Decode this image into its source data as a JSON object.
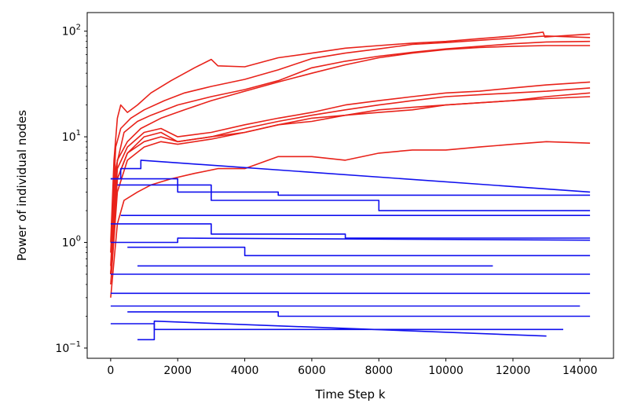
{
  "chart_data": {
    "type": "line",
    "title": "",
    "xlabel": "Time Step k",
    "ylabel": "Power of individual nodes",
    "xlim": [
      -700,
      15000
    ],
    "ylim": [
      0.08,
      150
    ],
    "yscale": "log",
    "grid": false,
    "xticks": [
      0,
      2000,
      4000,
      6000,
      8000,
      10000,
      12000,
      14000
    ],
    "xtick_labels": [
      "0",
      "2000",
      "4000",
      "6000",
      "8000",
      "10000",
      "12000",
      "14000"
    ],
    "yticks": [
      0.1,
      1,
      10,
      100
    ],
    "ytick_labels": [
      {
        "base": "10",
        "exp": "−1"
      },
      {
        "base": "10",
        "exp": "0"
      },
      {
        "base": "10",
        "exp": "1"
      },
      {
        "base": "10",
        "exp": "2"
      }
    ],
    "colors": {
      "red_group": "#e8221a",
      "blue_group": "#1010ee"
    },
    "series": [
      {
        "group": "red",
        "x": [
          0,
          100,
          200,
          300,
          500,
          800,
          1200,
          1800,
          2500,
          3000,
          3200,
          4000,
          5000,
          6000,
          7000,
          8000,
          9000,
          10000,
          11000,
          12000,
          12900,
          12950,
          14300
        ],
        "y": [
          1.0,
          6,
          15,
          20,
          17,
          20,
          26,
          34,
          45,
          54,
          47,
          46,
          56,
          62,
          69,
          73,
          77,
          80,
          85,
          90,
          98,
          88,
          94
        ]
      },
      {
        "group": "red",
        "x": [
          0,
          150,
          300,
          600,
          1000,
          1600,
          2200,
          3000,
          4000,
          5000,
          6000,
          7000,
          8000,
          9000,
          10000,
          11000,
          12000,
          13000,
          14300
        ],
        "y": [
          0.8,
          8,
          12,
          15,
          18,
          22,
          26,
          30,
          35,
          43,
          55,
          62,
          68,
          75,
          78,
          82,
          86,
          90,
          87
        ]
      },
      {
        "group": "red",
        "x": [
          0,
          150,
          400,
          800,
          1200,
          2000,
          3000,
          4000,
          5000,
          6000,
          7000,
          8000,
          9000,
          10000,
          11000,
          12000,
          13000,
          14300
        ],
        "y": [
          0.6,
          5,
          11,
          14,
          16,
          20,
          24,
          28,
          34,
          45,
          52,
          58,
          63,
          68,
          72,
          76,
          79,
          80
        ]
      },
      {
        "group": "red",
        "x": [
          0,
          200,
          500,
          900,
          1500,
          2200,
          3000,
          4000,
          5000,
          6000,
          7000,
          8000,
          9000,
          10000,
          11000,
          12000,
          13000,
          14300
        ],
        "y": [
          0.5,
          6,
          9,
          12,
          15,
          18,
          22,
          27,
          33,
          40,
          48,
          56,
          62,
          67,
          70,
          72,
          73,
          73
        ]
      },
      {
        "group": "red",
        "x": [
          0,
          200,
          500,
          1000,
          1500,
          2000,
          3000,
          4000,
          5000,
          6000,
          7000,
          8000,
          9000,
          10000,
          11000,
          12000,
          13000,
          14300
        ],
        "y": [
          0.5,
          5,
          8,
          11,
          12,
          10,
          11,
          13,
          15,
          17,
          20,
          22,
          24,
          26,
          27,
          29,
          31,
          33
        ]
      },
      {
        "group": "red",
        "x": [
          0,
          200,
          500,
          1000,
          1500,
          2000,
          3000,
          4000,
          5000,
          6000,
          7000,
          8000,
          9000,
          10000,
          11000,
          12000,
          13000,
          14300
        ],
        "y": [
          0.5,
          4,
          7,
          10,
          11,
          9,
          10,
          12,
          14,
          16,
          18,
          20,
          22,
          24,
          25,
          26,
          27,
          29
        ]
      },
      {
        "group": "red",
        "x": [
          0,
          200,
          500,
          1000,
          1500,
          2000,
          3000,
          4000,
          5000,
          6000,
          7000,
          8000,
          9000,
          10000,
          11000,
          12000,
          13000,
          14300
        ],
        "y": [
          0.5,
          4,
          7,
          9,
          10,
          9,
          10,
          11,
          13,
          14,
          16,
          17,
          18,
          20,
          21,
          22,
          24,
          26
        ]
      },
      {
        "group": "red",
        "x": [
          0,
          200,
          500,
          1000,
          1500,
          2000,
          3000,
          4000,
          5000,
          6000,
          7000,
          8000,
          9000,
          10000,
          11000,
          12000,
          13000,
          14300
        ],
        "y": [
          0.4,
          3,
          6,
          8,
          9,
          8.5,
          9.5,
          11,
          13,
          15,
          16,
          18,
          19,
          20,
          21,
          22,
          23,
          24
        ]
      },
      {
        "group": "red",
        "x": [
          0,
          200,
          400,
          800,
          1200,
          1800,
          2500,
          3200,
          4000,
          5000,
          6000,
          7000,
          8000,
          9000,
          10000,
          11000,
          12000,
          13000,
          14300
        ],
        "y": [
          0.3,
          1.5,
          2.5,
          3,
          3.5,
          4,
          4.5,
          5,
          5,
          6.5,
          6.5,
          6,
          7,
          7.5,
          7.5,
          8,
          8.5,
          9,
          8.7
        ]
      },
      {
        "group": "blue",
        "x": [
          0,
          300,
          300,
          900,
          900,
          14300
        ],
        "y": [
          4,
          4,
          5,
          5,
          6,
          3
        ]
      },
      {
        "group": "blue",
        "x": [
          0,
          2000,
          2000,
          5000,
          5000,
          14300
        ],
        "y": [
          4,
          4,
          3,
          3,
          2.8,
          2.8
        ]
      },
      {
        "group": "blue",
        "x": [
          200,
          3000,
          3000,
          8000,
          8000,
          14300
        ],
        "y": [
          3.5,
          3.5,
          2.5,
          2.5,
          2,
          2
        ]
      },
      {
        "group": "blue",
        "x": [
          300,
          14300
        ],
        "y": [
          1.8,
          1.8
        ]
      },
      {
        "group": "blue",
        "x": [
          0,
          3000,
          3000,
          7000,
          7000,
          14300
        ],
        "y": [
          1.5,
          1.5,
          1.2,
          1.2,
          1.1,
          1.1
        ]
      },
      {
        "group": "blue",
        "x": [
          0,
          2000,
          2000,
          14300
        ],
        "y": [
          1.0,
          1.0,
          1.1,
          1.05
        ]
      },
      {
        "group": "blue",
        "x": [
          500,
          4000,
          4000,
          8000,
          8000,
          14300
        ],
        "y": [
          0.9,
          0.9,
          0.75,
          0.75,
          0.75,
          0.75
        ]
      },
      {
        "group": "blue",
        "x": [
          800,
          11400
        ],
        "y": [
          0.6,
          0.6
        ]
      },
      {
        "group": "blue",
        "x": [
          0,
          5000,
          5000,
          14300
        ],
        "y": [
          0.5,
          0.5,
          0.5,
          0.5
        ]
      },
      {
        "group": "blue",
        "x": [
          0,
          14300
        ],
        "y": [
          0.33,
          0.33
        ]
      },
      {
        "group": "blue",
        "x": [
          0,
          14000
        ],
        "y": [
          0.25,
          0.25
        ]
      },
      {
        "group": "blue",
        "x": [
          500,
          5000,
          5000,
          14300
        ],
        "y": [
          0.22,
          0.22,
          0.2,
          0.2
        ]
      },
      {
        "group": "blue",
        "x": [
          0,
          1300,
          1300,
          13500
        ],
        "y": [
          0.17,
          0.17,
          0.15,
          0.15
        ]
      },
      {
        "group": "blue",
        "x": [
          800,
          1300,
          1300,
          13000
        ],
        "y": [
          0.12,
          0.12,
          0.18,
          0.13
        ]
      }
    ]
  }
}
